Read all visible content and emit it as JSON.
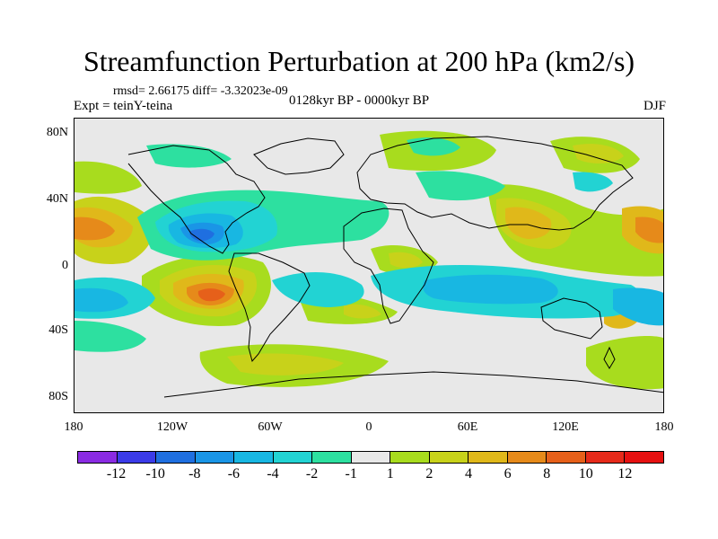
{
  "header": {
    "title": "Streamfunction Perturbation at 200 hPa (km2/s)",
    "rmsd": "rmsd= 2.66175 diff= -3.32023e-09",
    "expt": "Expt = teinY-teina",
    "period": "0128kyr BP - 0000kyr BP",
    "season": "DJF"
  },
  "axes": {
    "y_ticks": [
      "80N",
      "40N",
      "0",
      "40S",
      "80S"
    ],
    "x_ticks": [
      "180",
      "120W",
      "60W",
      "0",
      "60E",
      "120E",
      "180"
    ]
  },
  "colorbar": {
    "labels": [
      "-12",
      "-10",
      "-8",
      "-6",
      "-4",
      "-2",
      "-1",
      "1",
      "2",
      "4",
      "6",
      "8",
      "10",
      "12"
    ],
    "colors": [
      "#8a2be2",
      "#3b3be8",
      "#1f6fe0",
      "#1a95e6",
      "#18b7e2",
      "#22d3d3",
      "#2de0a0",
      "#e8e8e8",
      "#a8dc1e",
      "#c8d21a",
      "#e0b81a",
      "#e68a1a",
      "#e6601a",
      "#e62a1a",
      "#e61010"
    ]
  }
}
